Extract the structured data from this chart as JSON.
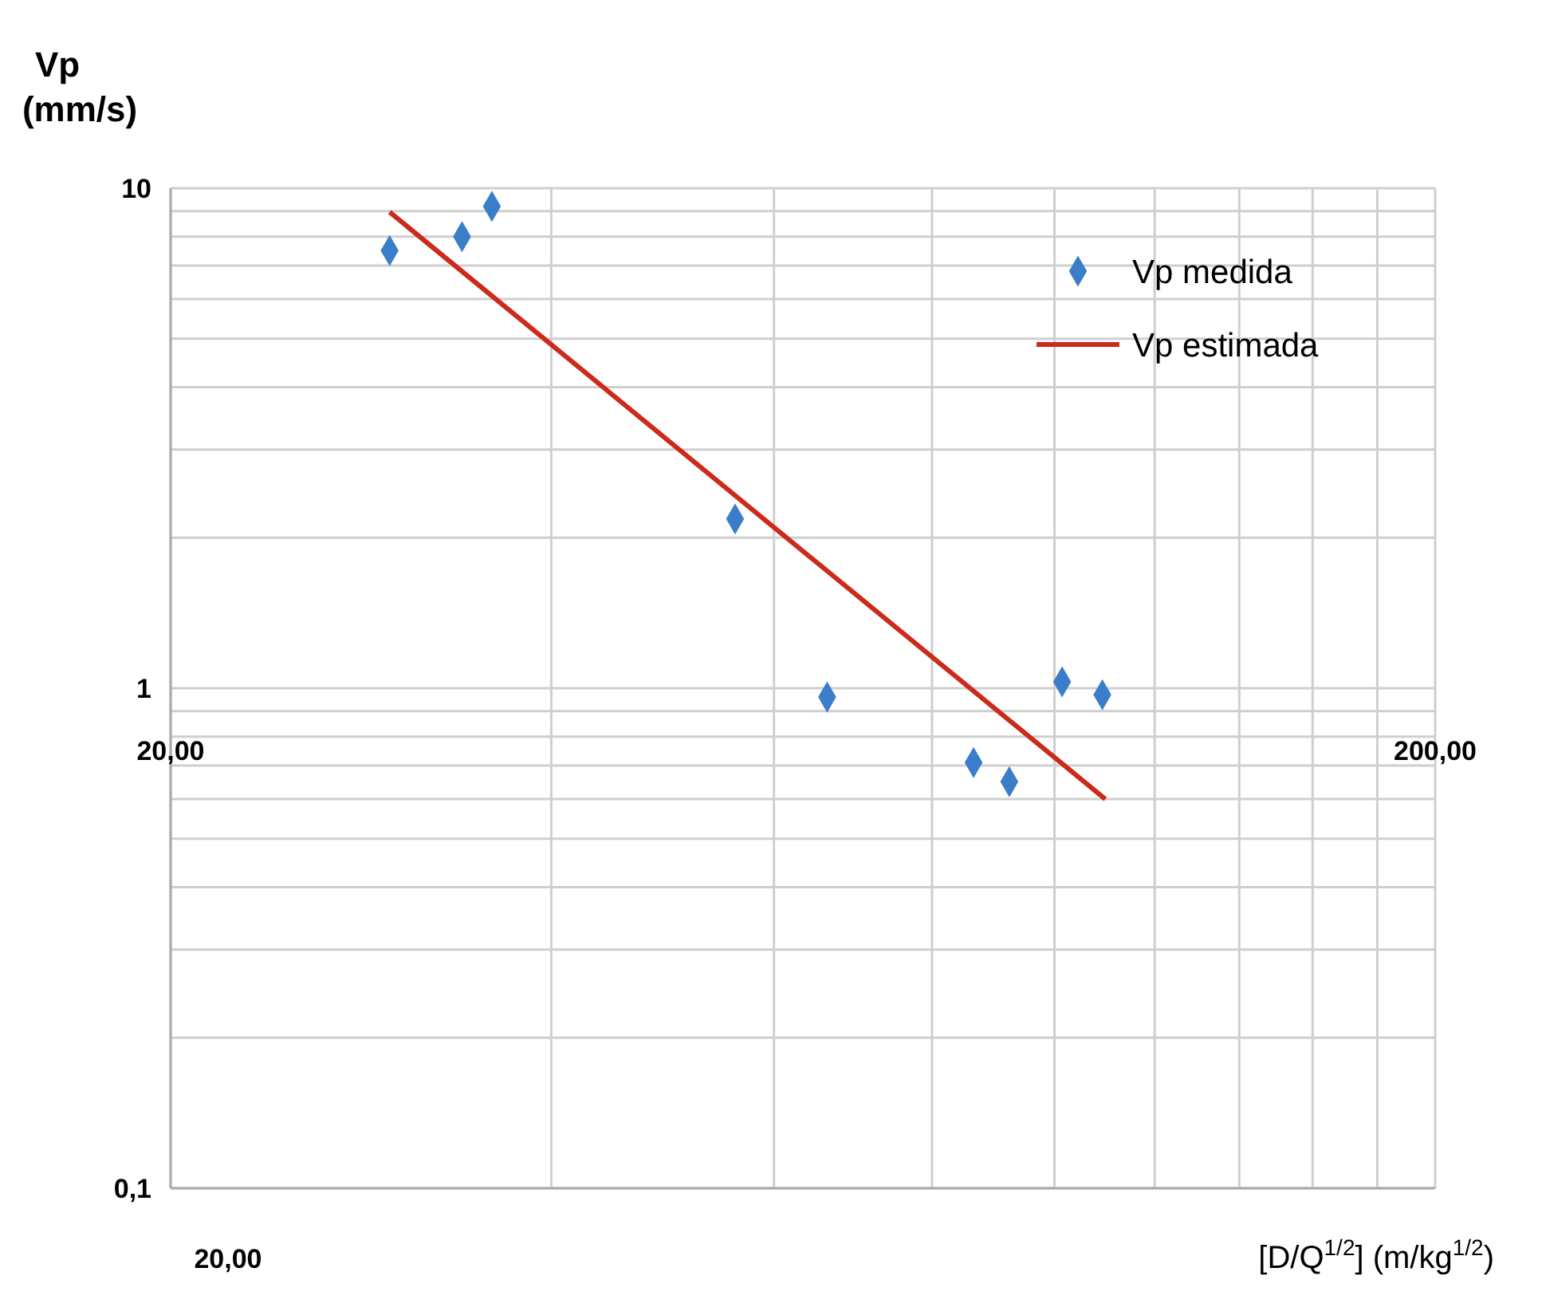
{
  "chart_data": {
    "type": "scatter",
    "ylabel": "Vp (mm/s)",
    "xlabel": "[D/Q$^{1/2}$] (m/kg$^{1/2}$)",
    "log": "xy",
    "grid": true,
    "legend": "top right",
    "xlim": [
      20,
      200
    ],
    "xticks": [
      {
        "value": 20,
        "label": "20,00"
      },
      {
        "value": 40,
        "label": null
      },
      {
        "value": 60,
        "label": null
      },
      {
        "value": 80,
        "label": null
      },
      {
        "value": 100,
        "label": null
      },
      {
        "value": 120,
        "label": null
      },
      {
        "value": 140,
        "label": null
      },
      {
        "value": 160,
        "label": null
      },
      {
        "value": 180,
        "label": null
      },
      {
        "value": 200,
        "label": "200,00"
      }
    ],
    "ylim": [
      0.1,
      10
    ],
    "yticks": [
      {
        "value": 0.1,
        "label": "0,1"
      },
      {
        "value": 0.2,
        "label": null
      },
      {
        "value": 0.3,
        "label": null
      },
      {
        "value": 0.4,
        "label": null
      },
      {
        "value": 0.5,
        "label": null
      },
      {
        "value": 0.6,
        "label": null
      },
      {
        "value": 0.7,
        "label": null
      },
      {
        "value": 0.8,
        "label": null
      },
      {
        "value": 0.9,
        "label": null
      },
      {
        "value": 1,
        "label": "1"
      },
      {
        "value": 2,
        "label": null
      },
      {
        "value": 3,
        "label": null
      },
      {
        "value": 4,
        "label": null
      },
      {
        "value": 5,
        "label": null
      },
      {
        "value": 6,
        "label": null
      },
      {
        "value": 7,
        "label": null
      },
      {
        "value": 8,
        "label": null
      },
      {
        "value": 9,
        "label": null
      },
      {
        "value": 10,
        "label": "10"
      }
    ],
    "annotations": [
      "20,00"
    ],
    "series": [
      {
        "name": "Vp medida",
        "marker": "diamond",
        "color": "#3a7dc9",
        "x": [
          29.8,
          34.0,
          35.9,
          55.9,
          66.1,
          86.3,
          92.1,
          101.4,
          109.1
        ],
        "values": [
          7.5,
          8.0,
          9.2,
          2.18,
          0.96,
          0.71,
          0.65,
          1.03,
          0.97
        ]
      },
      {
        "name": "Vp estimada",
        "type": "line",
        "marker": "none",
        "color": "#cc2a1a",
        "x": [
          29.8,
          109.7
        ],
        "values": [
          8.96,
          0.6
        ]
      }
    ]
  }
}
